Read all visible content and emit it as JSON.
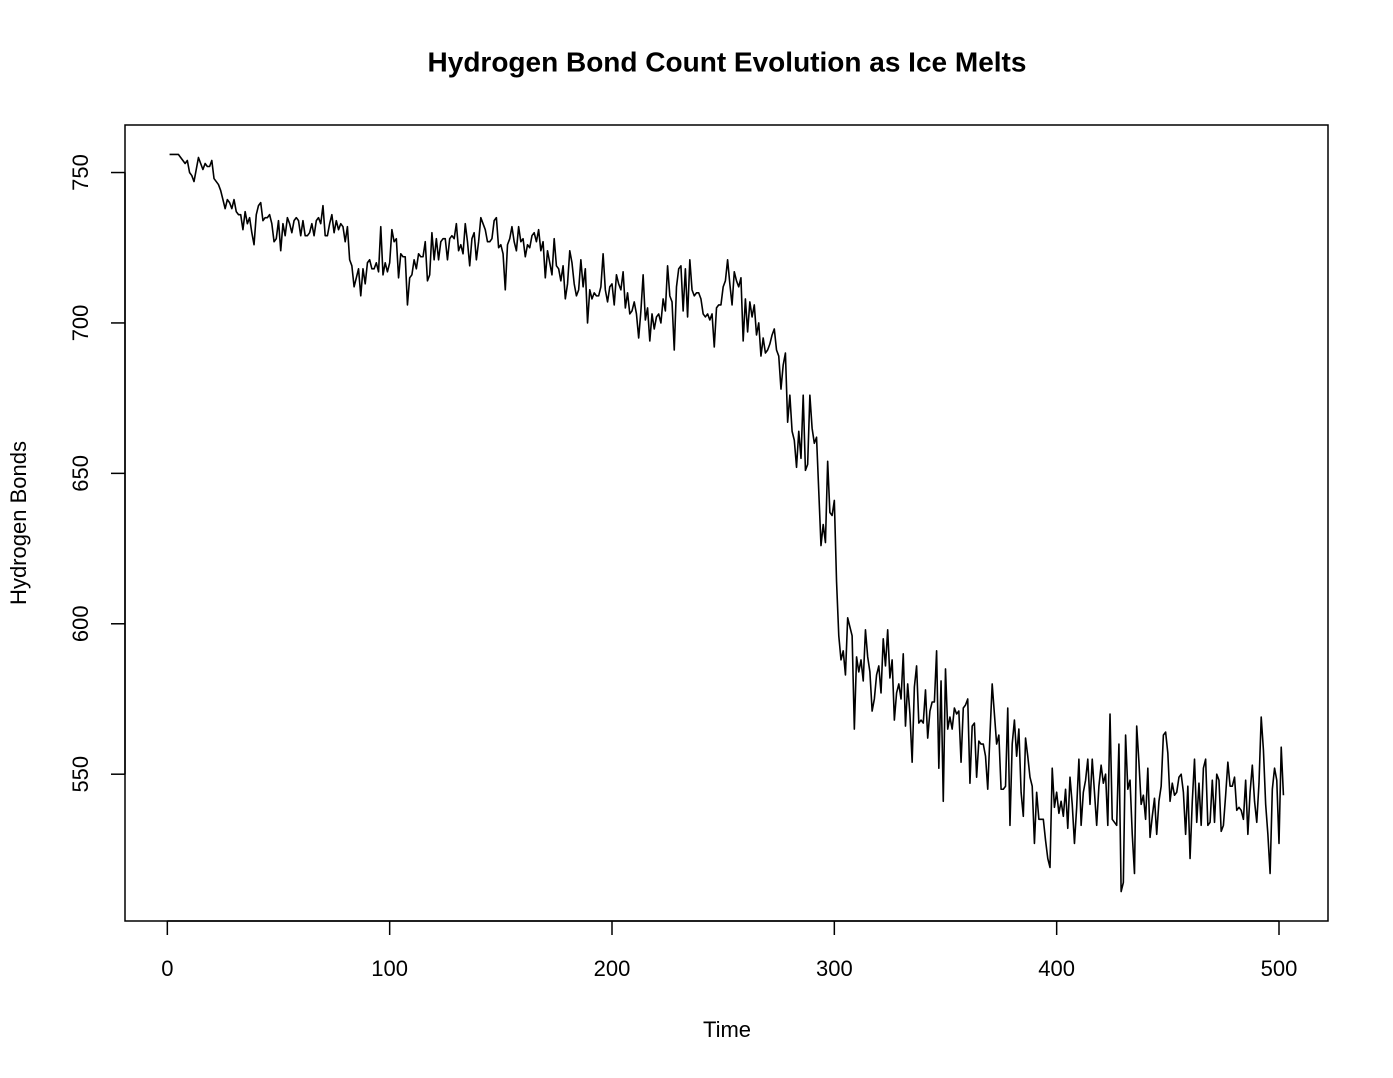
{
  "chart_data": {
    "type": "line",
    "title": "Hydrogen Bond Count Evolution as Ice Melts",
    "x_label": "Time",
    "y_label": "Hydrogen Bonds",
    "color": "#000000",
    "xlim": [
      -19.04,
      522.04
    ],
    "ylim": [
      501.2,
      765.8
    ],
    "xticks": [
      0,
      100,
      200,
      300,
      400,
      500
    ],
    "yticks": [
      550,
      600,
      650,
      700,
      750
    ],
    "x": [
      1,
      2,
      3,
      4,
      5,
      6,
      7,
      8,
      9,
      10,
      11,
      12,
      13,
      14,
      15,
      16,
      17,
      18,
      19,
      20,
      21,
      22,
      23,
      24,
      25,
      26,
      27,
      28,
      29,
      30,
      31,
      32,
      33,
      34,
      35,
      36,
      37,
      38,
      39,
      40,
      41,
      42,
      43,
      44,
      45,
      46,
      47,
      48,
      49,
      50,
      51,
      52,
      53,
      54,
      55,
      56,
      57,
      58,
      59,
      60,
      61,
      62,
      63,
      64,
      65,
      66,
      67,
      68,
      69,
      70,
      71,
      72,
      73,
      74,
      75,
      76,
      77,
      78,
      79,
      80,
      81,
      82,
      83,
      84,
      85,
      86,
      87,
      88,
      89,
      90,
      91,
      92,
      93,
      94,
      95,
      96,
      97,
      98,
      99,
      100,
      101,
      102,
      103,
      104,
      105,
      106,
      107,
      108,
      109,
      110,
      111,
      112,
      113,
      114,
      115,
      116,
      117,
      118,
      119,
      120,
      121,
      122,
      123,
      124,
      125,
      126,
      127,
      128,
      129,
      130,
      131,
      132,
      133,
      134,
      135,
      136,
      137,
      138,
      139,
      140,
      141,
      142,
      143,
      144,
      145,
      146,
      147,
      148,
      149,
      150,
      151,
      152,
      153,
      154,
      155,
      156,
      157,
      158,
      159,
      160,
      161,
      162,
      163,
      164,
      165,
      166,
      167,
      168,
      169,
      170,
      171,
      172,
      173,
      174,
      175,
      176,
      177,
      178,
      179,
      180,
      181,
      182,
      183,
      184,
      185,
      186,
      187,
      188,
      189,
      190,
      191,
      192,
      193,
      194,
      195,
      196,
      197,
      198,
      199,
      200,
      201,
      202,
      203,
      204,
      205,
      206,
      207,
      208,
      209,
      210,
      211,
      212,
      213,
      214,
      215,
      216,
      217,
      218,
      219,
      220,
      221,
      222,
      223,
      224,
      225,
      226,
      227,
      228,
      229,
      230,
      231,
      232,
      233,
      234,
      235,
      236,
      237,
      238,
      239,
      240,
      241,
      242,
      243,
      244,
      245,
      246,
      247,
      248,
      249,
      250,
      251,
      252,
      253,
      254,
      255,
      256,
      257,
      258,
      259,
      260,
      261,
      262,
      263,
      264,
      265,
      266,
      267,
      268,
      269,
      270,
      271,
      272,
      273,
      274,
      275,
      276,
      277,
      278,
      279,
      280,
      281,
      282,
      283,
      284,
      285,
      286,
      287,
      288,
      289,
      290,
      291,
      292,
      293,
      294,
      295,
      296,
      297,
      298,
      299,
      300,
      301,
      302,
      303,
      304,
      305,
      306,
      307,
      308,
      309,
      310,
      311,
      312,
      313,
      314,
      315,
      316,
      317,
      318,
      319,
      320,
      321,
      322,
      323,
      324,
      325,
      326,
      327,
      328,
      329,
      330,
      331,
      332,
      333,
      334,
      335,
      336,
      337,
      338,
      339,
      340,
      341,
      342,
      343,
      344,
      345,
      346,
      347,
      348,
      349,
      350,
      351,
      352,
      353,
      354,
      355,
      356,
      357,
      358,
      359,
      360,
      361,
      362,
      363,
      364,
      365,
      366,
      367,
      368,
      369,
      370,
      371,
      372,
      373,
      374,
      375,
      376,
      377,
      378,
      379,
      380,
      381,
      382,
      383,
      384,
      385,
      386,
      387,
      388,
      389,
      390,
      391,
      392,
      393,
      394,
      395,
      396,
      397,
      398,
      399,
      400,
      401,
      402,
      403,
      404,
      405,
      406,
      407,
      408,
      409,
      410,
      411,
      412,
      413,
      414,
      415,
      416,
      417,
      418,
      419,
      420,
      421,
      422,
      423,
      424,
      425,
      426,
      427,
      428,
      429,
      430,
      431,
      432,
      433,
      434,
      435,
      436,
      437,
      438,
      439,
      440,
      441,
      442,
      443,
      444,
      445,
      446,
      447,
      448,
      449,
      450,
      451,
      452,
      453,
      454,
      455,
      456,
      457,
      458,
      459,
      460,
      461,
      462,
      463,
      464,
      465,
      466,
      467,
      468,
      469,
      470,
      471,
      472,
      473,
      474,
      475,
      476,
      477,
      478,
      479,
      480,
      481,
      482,
      483,
      484,
      485,
      486,
      487,
      488,
      489,
      490,
      491,
      492,
      493,
      494,
      495,
      496,
      497,
      498,
      499,
      500,
      501,
      502
    ],
    "values": [
      756,
      756,
      756,
      756,
      756,
      755,
      754,
      753,
      754,
      750,
      749,
      747,
      751,
      755,
      753,
      751,
      753,
      752,
      752,
      754,
      748,
      747,
      746,
      744,
      741,
      738,
      741,
      740,
      738,
      741,
      737,
      736,
      736,
      731,
      737,
      733,
      735,
      730,
      726,
      736,
      739,
      740,
      734,
      735,
      735,
      736,
      733,
      727,
      728,
      734,
      724,
      733,
      729,
      735,
      733,
      730,
      734,
      735,
      734,
      729,
      734,
      729,
      729,
      730,
      733,
      729,
      734,
      735,
      733,
      739,
      729,
      729,
      733,
      736,
      730,
      734,
      731,
      733,
      732,
      727,
      732,
      721,
      719,
      712,
      715,
      718,
      709,
      718,
      713,
      720,
      721,
      718,
      718,
      720,
      717,
      732,
      716,
      720,
      717,
      720,
      731,
      727,
      728,
      715,
      723,
      722,
      722,
      706,
      715,
      716,
      721,
      718,
      723,
      722,
      722,
      727,
      714,
      716,
      730,
      721,
      728,
      721,
      727,
      728,
      728,
      721,
      728,
      729,
      728,
      733,
      724,
      726,
      723,
      733,
      727,
      719,
      728,
      730,
      721,
      727,
      735,
      733,
      731,
      727,
      727,
      728,
      734,
      735,
      725,
      726,
      723,
      711,
      726,
      728,
      732,
      727,
      724,
      732,
      727,
      728,
      722,
      726,
      725,
      729,
      730,
      727,
      731,
      724,
      727,
      715,
      724,
      720,
      716,
      728,
      719,
      718,
      714,
      719,
      708,
      713,
      724,
      720,
      713,
      709,
      711,
      721,
      712,
      718,
      700,
      711,
      708,
      710,
      709,
      709,
      712,
      723,
      711,
      707,
      712,
      713,
      706,
      716,
      713,
      711,
      717,
      705,
      710,
      703,
      704,
      707,
      703,
      695,
      704,
      716,
      701,
      705,
      694,
      703,
      698,
      702,
      703,
      700,
      708,
      704,
      719,
      709,
      707,
      691,
      712,
      718,
      719,
      704,
      718,
      702,
      721,
      711,
      709,
      710,
      710,
      708,
      703,
      702,
      703,
      701,
      703,
      692,
      705,
      706,
      706,
      712,
      714,
      721,
      713,
      706,
      717,
      714,
      712,
      715,
      694,
      708,
      697,
      707,
      702,
      706,
      696,
      700,
      689,
      695,
      690,
      691,
      693,
      696,
      698,
      691,
      689,
      678,
      686,
      690,
      667,
      676,
      664,
      661,
      652,
      664,
      655,
      676,
      651,
      653,
      676,
      665,
      660,
      662,
      644,
      626,
      633,
      627,
      654,
      637,
      636,
      641,
      614,
      596,
      588,
      591,
      583,
      602,
      599,
      596,
      565,
      589,
      584,
      588,
      581,
      598,
      589,
      584,
      571,
      575,
      583,
      586,
      577,
      595,
      586,
      598,
      582,
      588,
      568,
      577,
      580,
      575,
      590,
      566,
      580,
      570,
      554,
      579,
      586,
      567,
      568,
      567,
      578,
      562,
      571,
      574,
      574,
      591,
      552,
      581,
      541,
      585,
      565,
      569,
      565,
      572,
      570,
      571,
      554,
      572,
      573,
      575,
      547,
      566,
      567,
      549,
      561,
      560,
      560,
      556,
      545,
      563,
      580,
      570,
      560,
      563,
      545,
      545,
      546,
      572,
      533,
      560,
      568,
      556,
      565,
      544,
      536,
      562,
      556,
      549,
      546,
      527,
      544,
      535,
      535,
      535,
      528,
      522,
      519,
      552,
      539,
      544,
      537,
      541,
      536,
      545,
      532,
      549,
      540,
      527,
      539,
      555,
      533,
      544,
      548,
      555,
      540,
      555,
      544,
      533,
      546,
      553,
      547,
      550,
      533,
      570,
      535,
      534,
      533,
      560,
      511,
      514,
      563,
      545,
      548,
      530,
      517,
      566,
      554,
      540,
      543,
      535,
      552,
      529,
      536,
      542,
      530,
      541,
      546,
      563,
      564,
      557,
      541,
      547,
      543,
      544,
      549,
      550,
      544,
      530,
      546,
      522,
      541,
      555,
      534,
      547,
      533,
      552,
      555,
      533,
      534,
      548,
      534,
      550,
      548,
      531,
      533,
      543,
      554,
      546,
      546,
      549,
      538,
      539,
      538,
      535,
      548,
      530,
      544,
      553,
      541,
      534,
      547,
      569,
      558,
      540,
      530,
      517,
      545,
      552,
      548,
      527,
      559,
      543
    ]
  }
}
